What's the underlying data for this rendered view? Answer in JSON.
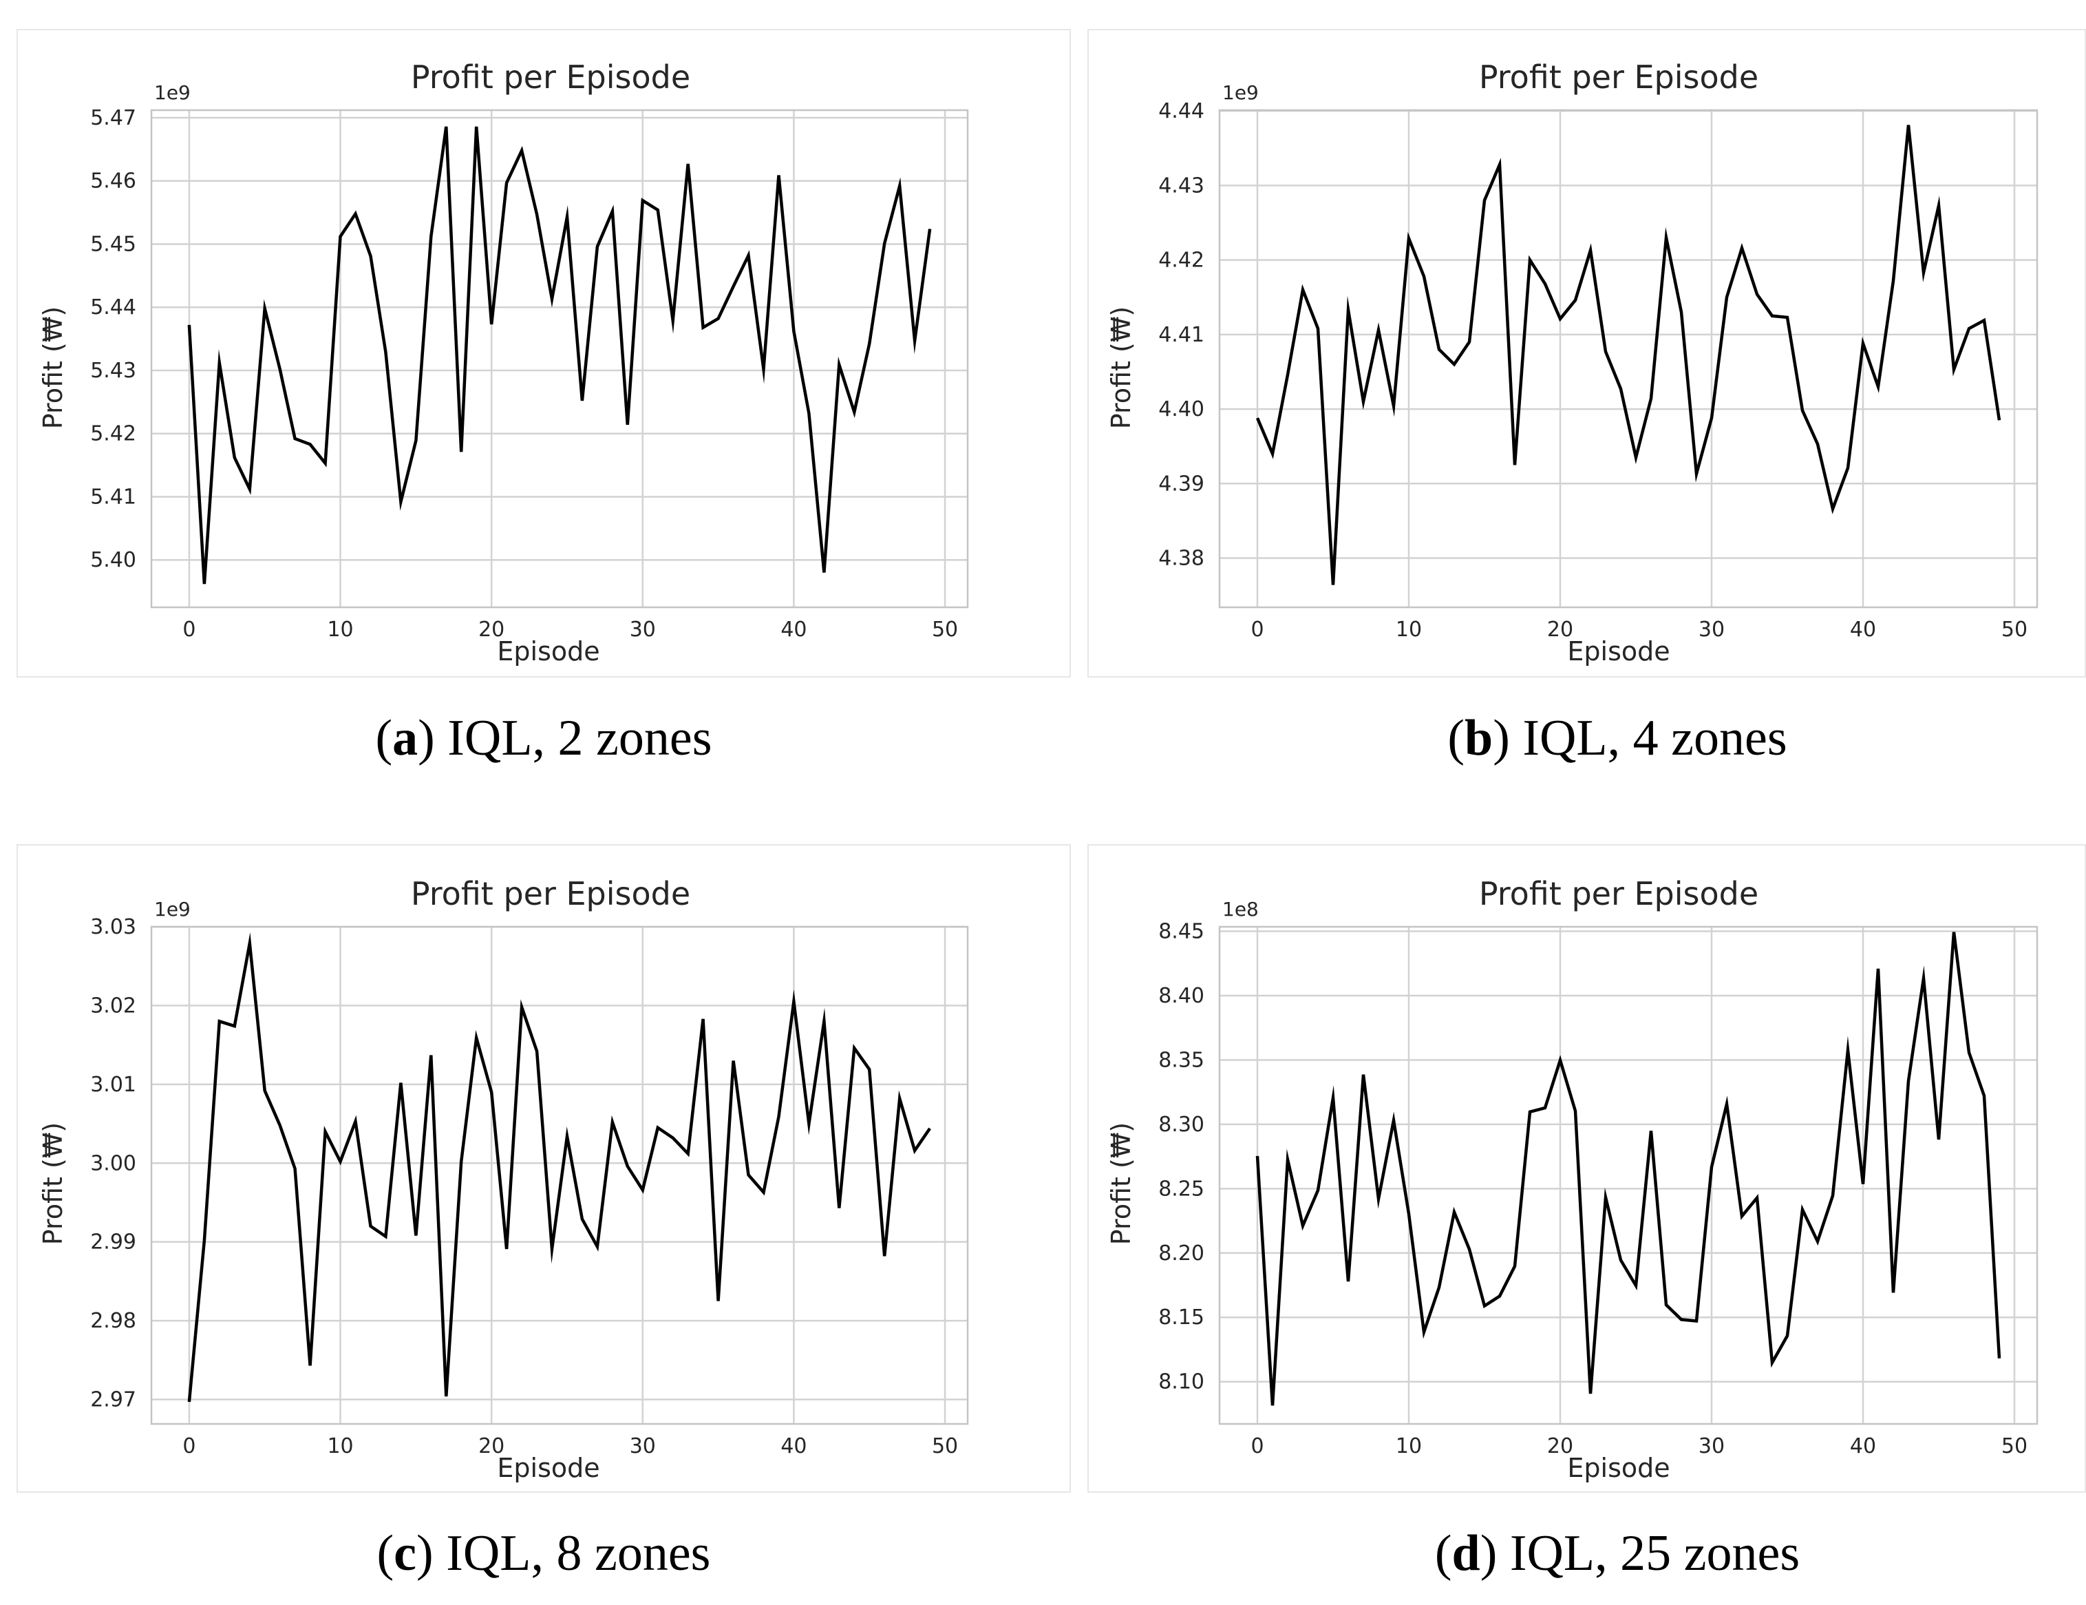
{
  "figure": {
    "panels": [
      {
        "caption_letter": "a",
        "caption_text": "IQL, 2 zones"
      },
      {
        "caption_letter": "b",
        "caption_text": "IQL, 4 zones"
      },
      {
        "caption_letter": "c",
        "caption_text": "IQL, 8 zones"
      },
      {
        "caption_letter": "d",
        "caption_text": "IQL, 25 zones"
      }
    ]
  },
  "chart_data": [
    {
      "type": "line",
      "title": "Profit per Episode",
      "xlabel": "Episode",
      "ylabel": "Profit (₩)",
      "offset_label": "1e9",
      "xlim": [
        -2.5,
        51.5
      ],
      "ylim": [
        5.3925,
        5.4712
      ],
      "xticks": [
        0,
        10,
        20,
        30,
        40,
        50
      ],
      "xtick_labels": [
        "0",
        "10",
        "20",
        "30",
        "40",
        "50"
      ],
      "yticks": [
        5.4,
        5.41,
        5.42,
        5.43,
        5.44,
        5.45,
        5.46,
        5.47
      ],
      "ytick_labels": [
        "5.40",
        "5.41",
        "5.42",
        "5.43",
        "5.44",
        "5.45",
        "5.46",
        "5.47"
      ],
      "grid": true,
      "color": "#000000",
      "x": [
        0,
        1,
        2,
        3,
        4,
        5,
        6,
        7,
        8,
        9,
        10,
        11,
        12,
        13,
        14,
        15,
        16,
        17,
        18,
        19,
        20,
        21,
        22,
        23,
        24,
        25,
        26,
        27,
        28,
        29,
        30,
        31,
        32,
        33,
        34,
        35,
        36,
        37,
        38,
        39,
        40,
        41,
        42,
        43,
        44,
        45,
        46,
        47,
        48,
        49
      ],
      "y": [
        5.4372,
        5.3962,
        5.4312,
        5.4162,
        5.4112,
        5.4398,
        5.4302,
        5.4192,
        5.4183,
        5.4153,
        5.4512,
        5.4548,
        5.4481,
        5.4329,
        5.4092,
        5.4189,
        5.4512,
        5.4686,
        5.4171,
        5.4686,
        5.4373,
        5.4597,
        5.4648,
        5.4547,
        5.4413,
        5.4543,
        5.4252,
        5.4496,
        5.4552,
        5.4214,
        5.4569,
        5.4554,
        5.4379,
        5.4627,
        5.4368,
        5.4382,
        5.4433,
        5.4482,
        5.4302,
        5.4609,
        5.4362,
        5.4232,
        5.398,
        5.4309,
        5.4234,
        5.4342,
        5.4501,
        5.4592,
        5.4347,
        5.4524
      ]
    },
    {
      "type": "line",
      "title": "Profit per Episode",
      "xlabel": "Episode",
      "ylabel": "Profit (₩)",
      "offset_label": "1e9",
      "xlim": [
        -2.5,
        51.5
      ],
      "ylim": [
        4.3734,
        4.4401
      ],
      "xticks": [
        0,
        10,
        20,
        30,
        40,
        50
      ],
      "xtick_labels": [
        "0",
        "10",
        "20",
        "30",
        "40",
        "50"
      ],
      "yticks": [
        4.38,
        4.39,
        4.4,
        4.41,
        4.42,
        4.43,
        4.44
      ],
      "ytick_labels": [
        "4.38",
        "4.39",
        "4.40",
        "4.41",
        "4.42",
        "4.43",
        "4.44"
      ],
      "grid": true,
      "color": "#000000",
      "x": [
        0,
        1,
        2,
        3,
        4,
        5,
        6,
        7,
        8,
        9,
        10,
        11,
        12,
        13,
        14,
        15,
        16,
        17,
        18,
        19,
        20,
        21,
        22,
        23,
        24,
        25,
        26,
        27,
        28,
        29,
        30,
        31,
        32,
        33,
        34,
        35,
        36,
        37,
        38,
        39,
        40,
        41,
        42,
        43,
        44,
        45,
        46,
        47,
        48,
        49
      ],
      "y": [
        4.3988,
        4.394,
        4.4046,
        4.416,
        4.4108,
        4.3764,
        4.4133,
        4.401,
        4.4106,
        4.4004,
        4.4229,
        4.4178,
        4.408,
        4.406,
        4.409,
        4.428,
        4.4328,
        4.3925,
        4.42,
        4.4168,
        4.4121,
        4.4146,
        4.4213,
        4.4077,
        4.4027,
        4.3935,
        4.4014,
        4.423,
        4.413,
        4.3913,
        4.3988,
        4.415,
        4.4216,
        4.4154,
        4.4125,
        4.4123,
        4.3998,
        4.3953,
        4.3866,
        4.3921,
        4.4088,
        4.403,
        4.4172,
        4.4381,
        4.4183,
        4.4273,
        4.4053,
        4.4108,
        4.4119,
        4.3985
      ]
    },
    {
      "type": "line",
      "title": "Profit per Episode",
      "xlabel": "Episode",
      "ylabel": "Profit (₩)",
      "offset_label": "1e9",
      "xlim": [
        -2.5,
        51.5
      ],
      "ylim": [
        2.9669,
        3.03
      ],
      "xticks": [
        0,
        10,
        20,
        30,
        40,
        50
      ],
      "xtick_labels": [
        "0",
        "10",
        "20",
        "30",
        "40",
        "50"
      ],
      "yticks": [
        2.97,
        2.98,
        2.99,
        3.0,
        3.01,
        3.02,
        3.03
      ],
      "ytick_labels": [
        "2.97",
        "2.98",
        "2.99",
        "3.00",
        "3.01",
        "3.02",
        "3.03"
      ],
      "grid": true,
      "color": "#000000",
      "x": [
        0,
        1,
        2,
        3,
        4,
        5,
        6,
        7,
        8,
        9,
        10,
        11,
        12,
        13,
        14,
        15,
        16,
        17,
        18,
        19,
        20,
        21,
        22,
        23,
        24,
        25,
        26,
        27,
        28,
        29,
        30,
        31,
        32,
        33,
        34,
        35,
        36,
        37,
        38,
        39,
        40,
        41,
        42,
        43,
        44,
        45,
        46,
        47,
        48,
        49
      ],
      "y": [
        2.9697,
        2.9902,
        3.018,
        3.0174,
        3.0279,
        3.0092,
        3.0048,
        2.9993,
        2.9743,
        3.004,
        3.0002,
        3.0053,
        2.992,
        2.9907,
        3.0102,
        2.9908,
        3.0137,
        2.9704,
        3.0002,
        3.0159,
        3.009,
        2.9891,
        3.0198,
        3.0142,
        2.9891,
        3.0034,
        2.9929,
        2.9894,
        3.0052,
        2.9996,
        2.9966,
        3.0045,
        3.0032,
        3.0012,
        3.0183,
        2.9825,
        3.013,
        2.9985,
        2.9963,
        3.0059,
        3.0205,
        3.005,
        3.018,
        2.9943,
        3.0146,
        3.0119,
        2.9882,
        3.0082,
        3.0016,
        3.0044
      ]
    },
    {
      "type": "line",
      "title": "Profit per Episode",
      "xlabel": "Episode",
      "ylabel": "Profit (₩)",
      "offset_label": "1e8",
      "xlim": [
        -2.5,
        51.5
      ],
      "ylim": [
        8.0672,
        8.4535
      ],
      "xticks": [
        0,
        10,
        20,
        30,
        40,
        50
      ],
      "xtick_labels": [
        "0",
        "10",
        "20",
        "30",
        "40",
        "50"
      ],
      "yticks": [
        8.1,
        8.15,
        8.2,
        8.25,
        8.3,
        8.35,
        8.4,
        8.45
      ],
      "ytick_labels": [
        "8.10",
        "8.15",
        "8.20",
        "8.25",
        "8.30",
        "8.35",
        "8.40",
        "8.45"
      ],
      "grid": true,
      "color": "#000000",
      "x": [
        0,
        1,
        2,
        3,
        4,
        5,
        6,
        7,
        8,
        9,
        10,
        11,
        12,
        13,
        14,
        15,
        16,
        17,
        18,
        19,
        20,
        21,
        22,
        23,
        24,
        25,
        26,
        27,
        28,
        29,
        30,
        31,
        32,
        33,
        34,
        35,
        36,
        37,
        38,
        39,
        40,
        41,
        42,
        43,
        44,
        45,
        46,
        47,
        48,
        49
      ],
      "y": [
        8.2754,
        8.0815,
        8.2726,
        8.2212,
        8.2487,
        8.3206,
        8.1779,
        8.3386,
        8.242,
        8.303,
        8.2304,
        8.1386,
        8.1733,
        8.2318,
        8.2029,
        8.1589,
        8.1665,
        8.1897,
        8.3097,
        8.3128,
        8.3498,
        8.3104,
        8.0907,
        8.2432,
        8.1945,
        8.1747,
        8.2949,
        8.1597,
        8.1483,
        8.1472,
        8.2669,
        8.3158,
        8.2286,
        8.2429,
        8.1148,
        8.1357,
        8.2337,
        8.209,
        8.2445,
        8.3576,
        8.2536,
        8.4209,
        8.1692,
        8.3337,
        8.4134,
        8.2882,
        8.4494,
        8.3558,
        8.3222,
        8.1182
      ]
    }
  ]
}
